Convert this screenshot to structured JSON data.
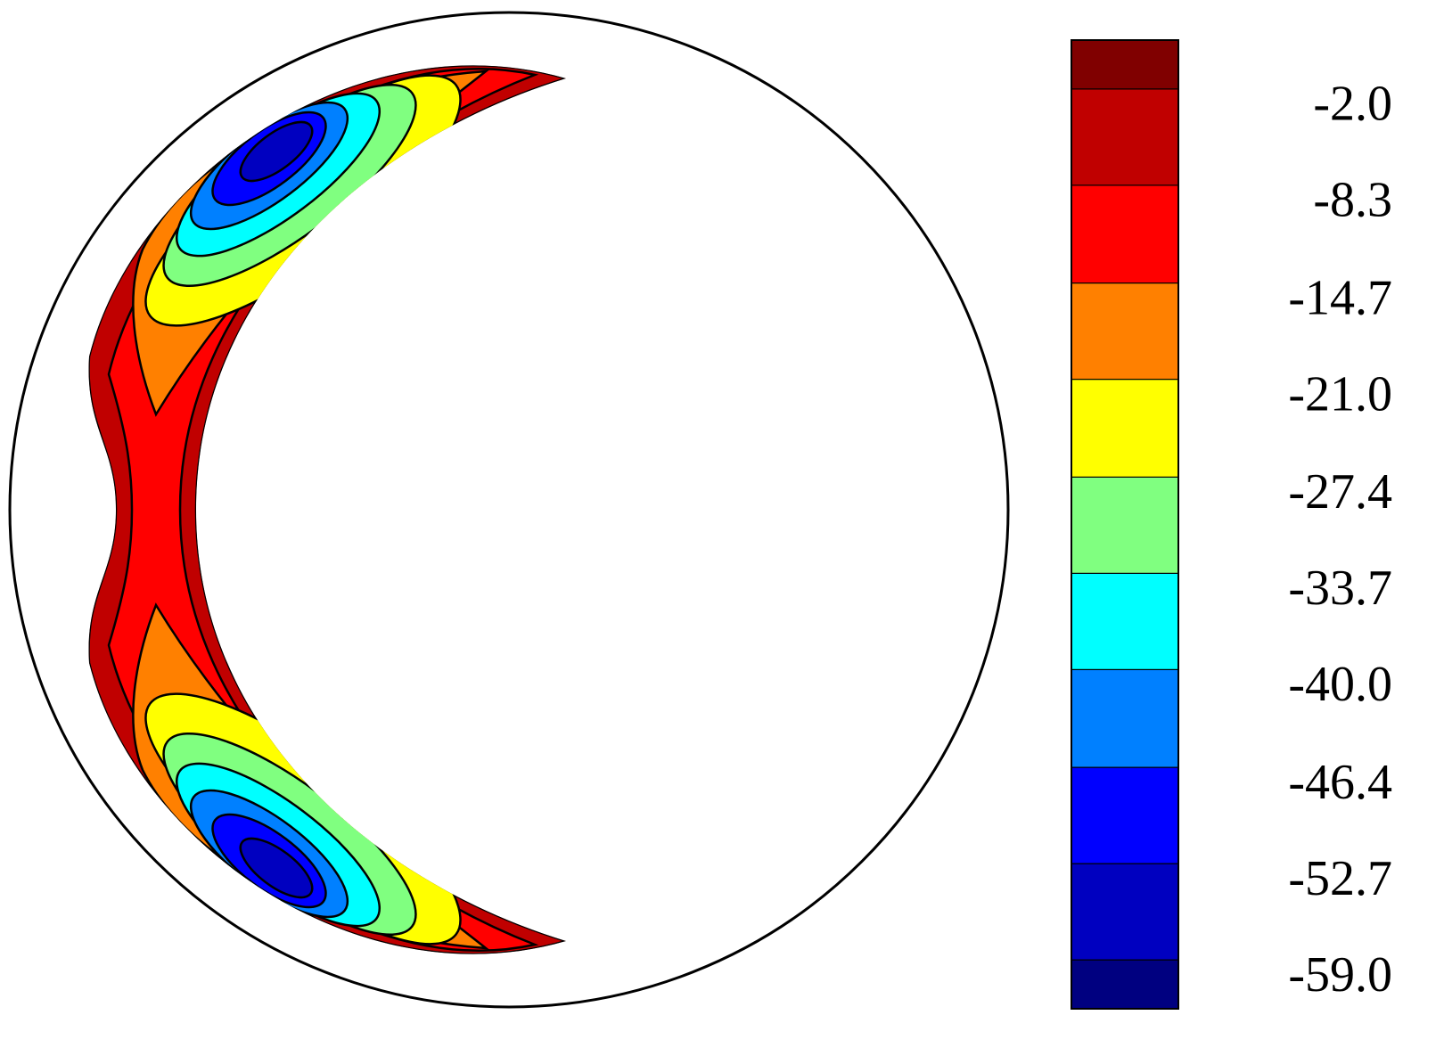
{
  "chart_data": {
    "type": "contour",
    "colorbar": {
      "clim": [
        -62.2,
        1.2
      ],
      "cticks": [
        {
          "value": -59.0,
          "label": "-59.0"
        },
        -52.7,
        -46.4,
        {
          "value": -40.0,
          "label": "-40.0"
        },
        -33.7,
        -27.4,
        {
          "value": -21.0,
          "label": "-21.0"
        },
        -14.7,
        -8.3,
        {
          "value": -2.0,
          "label": "-2.0"
        }
      ],
      "colors": [
        "#000080",
        "#0000c0",
        "#0000ff",
        "#0080ff",
        "#00ffff",
        "#80ff80",
        "#ffff00",
        "#ff8000",
        "#ff0000",
        "#c00000",
        "#800000"
      ]
    }
  }
}
